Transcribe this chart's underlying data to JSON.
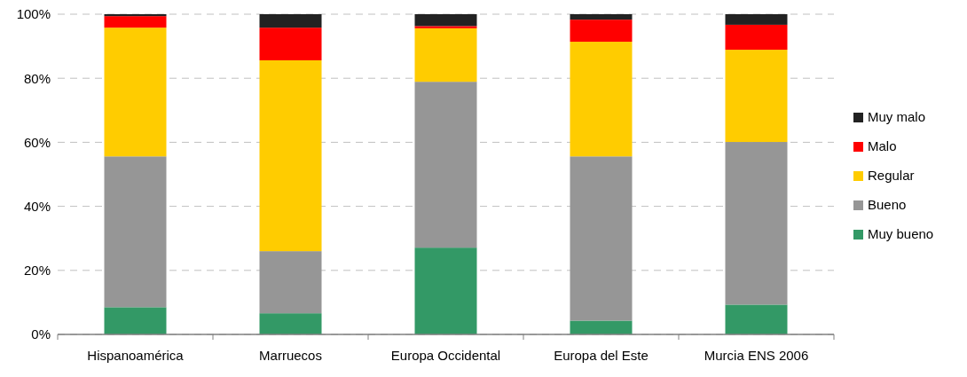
{
  "chart_data": {
    "type": "bar",
    "stacked": true,
    "categories": [
      "Hispanoamérica",
      "Marruecos",
      "Europa Occidental",
      "Europa del Este",
      "Murcia ENS 2006"
    ],
    "series": [
      {
        "name": "Muy bueno",
        "color": "#339966",
        "values": [
          8.5,
          6.6,
          27.1,
          4.3,
          9.3
        ]
      },
      {
        "name": "Bueno",
        "color": "#969696",
        "values": [
          47.1,
          19.4,
          51.8,
          51.3,
          50.8
        ]
      },
      {
        "name": "Regular",
        "color": "#ffcc00",
        "values": [
          40.2,
          59.6,
          16.7,
          35.8,
          28.8
        ]
      },
      {
        "name": "Malo",
        "color": "#ff0000",
        "values": [
          3.6,
          10.2,
          0.7,
          6.9,
          7.8
        ]
      },
      {
        "name": "Muy malo",
        "color": "#222222",
        "values": [
          0.6,
          4.2,
          3.7,
          1.7,
          3.3
        ]
      }
    ],
    "ylim": [
      0,
      100
    ],
    "yticks": [
      {
        "value": 0,
        "label": "0%"
      },
      {
        "value": 20,
        "label": "20%"
      },
      {
        "value": 40,
        "label": "40%"
      },
      {
        "value": 60,
        "label": "60%"
      },
      {
        "value": 80,
        "label": "80%"
      },
      {
        "value": 100,
        "label": "100%"
      }
    ],
    "grid": "y",
    "legend": "right"
  }
}
